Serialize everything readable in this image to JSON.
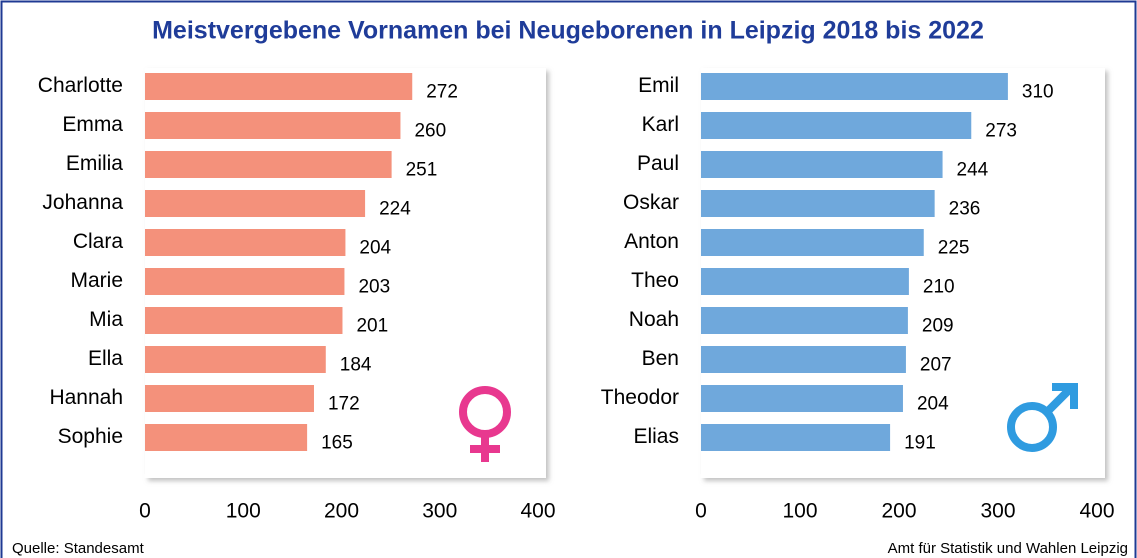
{
  "title": "Meistvergebene Vornamen bei Neugeborenen in Leipzig 2018 bis 2022",
  "source": "Quelle: Standesamt",
  "credit": "Amt für Statistik und Wahlen Leipzig",
  "chart_data": [
    {
      "type": "bar",
      "orientation": "horizontal",
      "color": "#f4917b",
      "categories": [
        "Charlotte",
        "Emma",
        "Emilia",
        "Johanna",
        "Clara",
        "Marie",
        "Mia",
        "Ella",
        "Hannah",
        "Sophie"
      ],
      "values": [
        272,
        260,
        251,
        224,
        204,
        203,
        201,
        184,
        172,
        165
      ],
      "xlim": [
        0,
        400
      ],
      "xticks": [
        0,
        100,
        200,
        300,
        400
      ]
    },
    {
      "type": "bar",
      "orientation": "horizontal",
      "color": "#6fa8dc",
      "categories": [
        "Emil",
        "Karl",
        "Paul",
        "Oskar",
        "Anton",
        "Theo",
        "Noah",
        "Ben",
        "Theodor",
        "Elias"
      ],
      "values": [
        310,
        273,
        244,
        236,
        225,
        210,
        209,
        207,
        204,
        191
      ],
      "xlim": [
        0,
        400
      ],
      "xticks": [
        0,
        100,
        200,
        300,
        400
      ]
    }
  ]
}
